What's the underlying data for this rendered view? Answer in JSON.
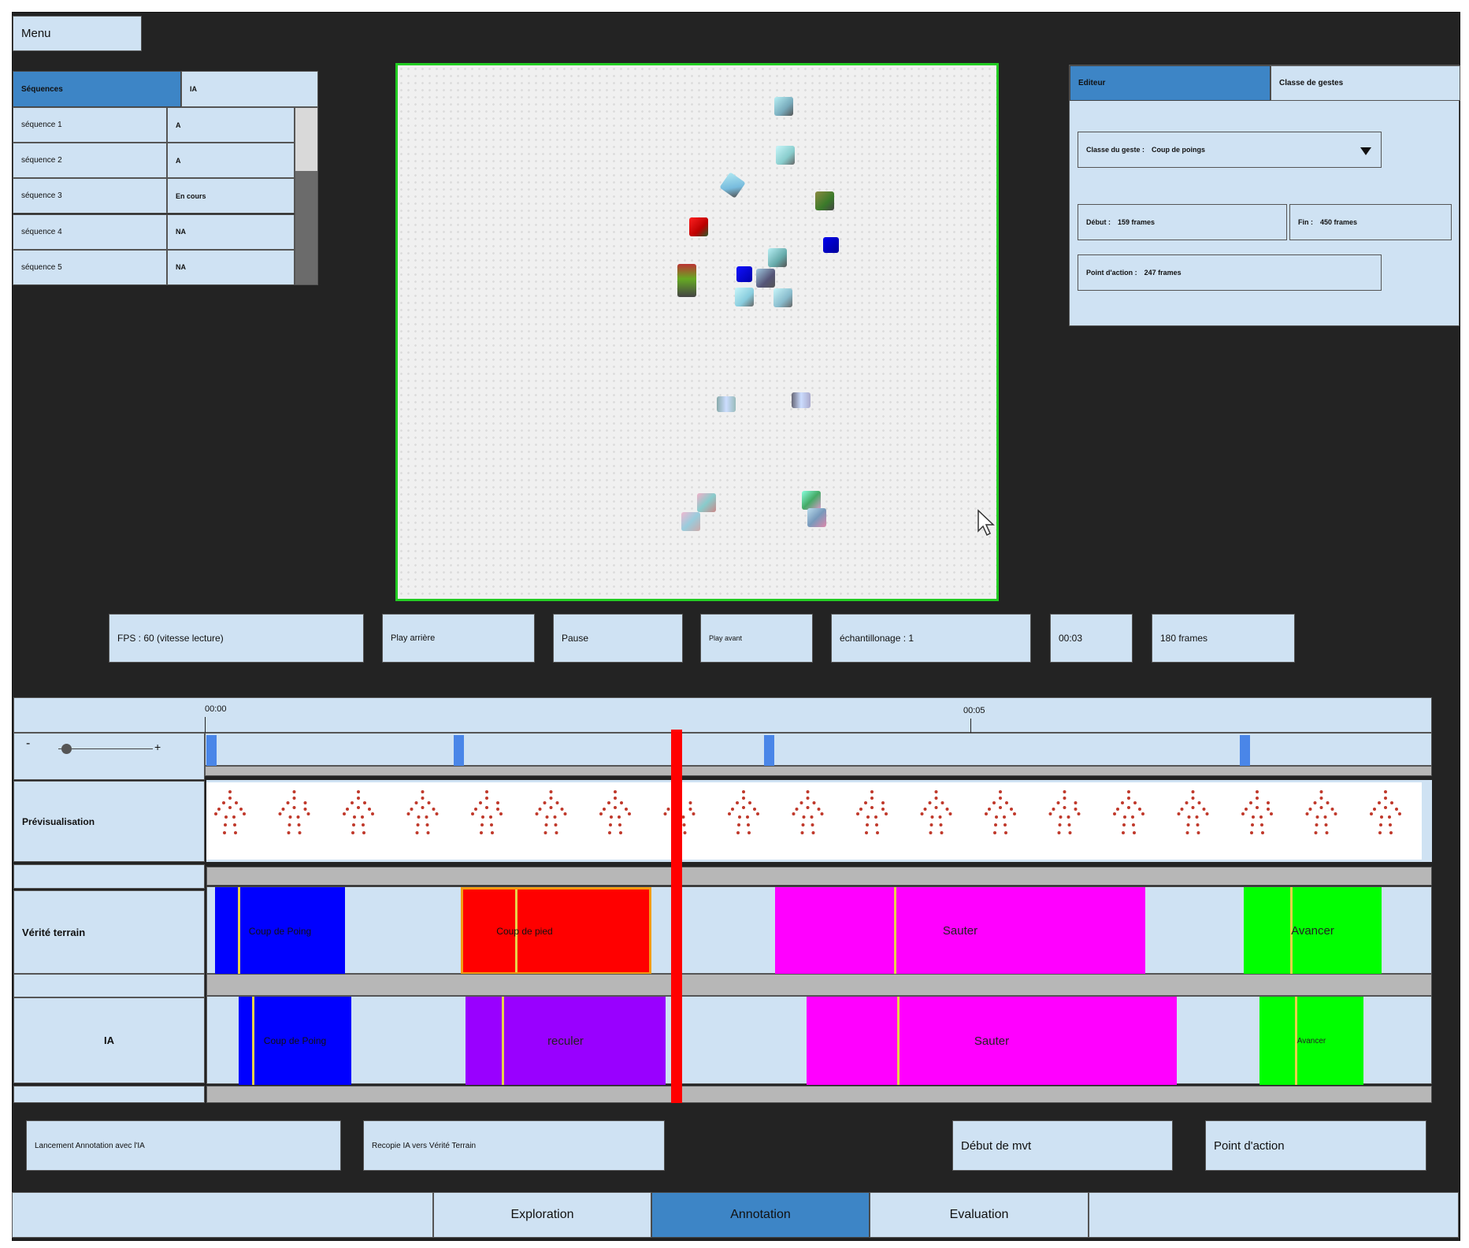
{
  "menu": {
    "label": "Menu"
  },
  "sequences": {
    "header": {
      "col1": "Séquences",
      "col2": "IA"
    },
    "rows": [
      {
        "name": "séquence 1",
        "status": "A"
      },
      {
        "name": "séquence 2",
        "status": "A"
      },
      {
        "name": "séquence 3",
        "status": "En cours"
      },
      {
        "name": "séquence 4",
        "status": "NA"
      },
      {
        "name": "séquence 5",
        "status": "NA"
      }
    ]
  },
  "editor": {
    "tabs": [
      "Editeur",
      "Classe de gestes"
    ],
    "gesture_class_label": "Classe du geste :",
    "gesture_class_value": "Coup de poings",
    "start_label": "Début :",
    "start_value": "159 frames",
    "end_label": "Fin :",
    "end_value": "450 frames",
    "action_point_label": "Point d'action :",
    "action_point_value": "247 frames"
  },
  "player": {
    "fps": "FPS : 60 (vitesse lecture)",
    "play_back": "Play arrière",
    "pause": "Pause",
    "play_forward": "Play avant",
    "sampling": "échantillonage : 1",
    "time": "00:03",
    "frames": "180 frames"
  },
  "timeline": {
    "ticks": [
      "00:00",
      "00:05"
    ],
    "zoom_minus": "-",
    "zoom_plus": "+",
    "zoom_level": 0.08,
    "track_labels": {
      "preview": "Prévisualisation",
      "ground_truth": "Vérité terrain",
      "ai": "IA"
    },
    "ground_truth": [
      {
        "label": "Coup de Poing",
        "color": "#0000ff"
      },
      {
        "label": "Coup de pied",
        "color": "#ff0000",
        "selected": true,
        "selection_color": "#f39c12"
      },
      {
        "label": "Sauter",
        "color": "#ff00ff"
      },
      {
        "label": "Avancer",
        "color": "#00ff00"
      }
    ],
    "ai": [
      {
        "label": "Coup de Poing",
        "color": "#0000ff"
      },
      {
        "label": "reculer",
        "color": "#9900ff"
      },
      {
        "label": "Sauter",
        "color": "#ff00ff"
      },
      {
        "label": "Avancer",
        "color": "#00ff00"
      }
    ],
    "playhead_color": "#ff0000"
  },
  "actions": {
    "launch_ai": "Lancement Annotation avec l'IA",
    "copy_ai": "Recopie IA vers Vérité Terrain",
    "start_move": "Début de mvt",
    "action_point": "Point d'action"
  },
  "bottom_tabs": [
    "Exploration",
    "Annotation",
    "Evaluation"
  ],
  "colors": {
    "background": "#232323",
    "panel": "#cfe2f3",
    "selected": "#3d85c6",
    "video_border": "#22cc22"
  }
}
